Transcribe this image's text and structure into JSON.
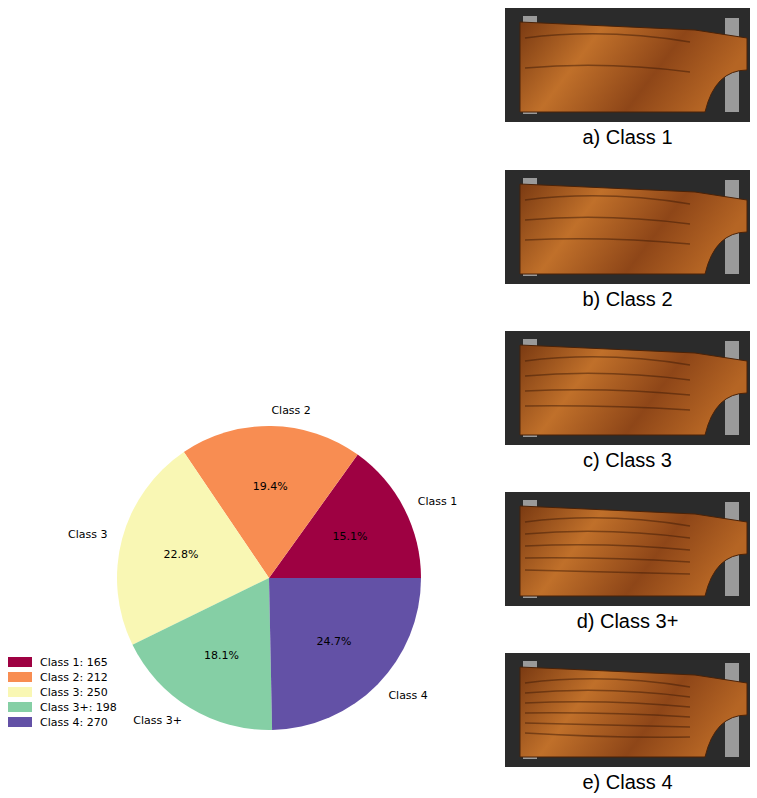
{
  "chart_data": {
    "type": "pie",
    "categories": [
      "Class 1",
      "Class 2",
      "Class 3",
      "Class 3+",
      "Class 4"
    ],
    "values": [
      15.1,
      19.4,
      22.8,
      18.1,
      24.7
    ],
    "value_labels": [
      "15.1%",
      "19.4%",
      "22.8%",
      "18.1%",
      "24.7%"
    ],
    "colors": [
      "#9e0142",
      "#f88d52",
      "#f9f7b4",
      "#85cfa5",
      "#6351a6"
    ],
    "data_labels": true,
    "legend": "lower left",
    "legend_labels": [
      "Class 1: 165",
      "Class 2: 212",
      "Class 3: 250",
      "Class 3+: 198",
      "Class 4: 270"
    ]
  },
  "images": {
    "captions": [
      "a) Class 1",
      "b) Class 2",
      "c) Class 3",
      "d) Class 3+",
      "e) Class 4"
    ]
  }
}
